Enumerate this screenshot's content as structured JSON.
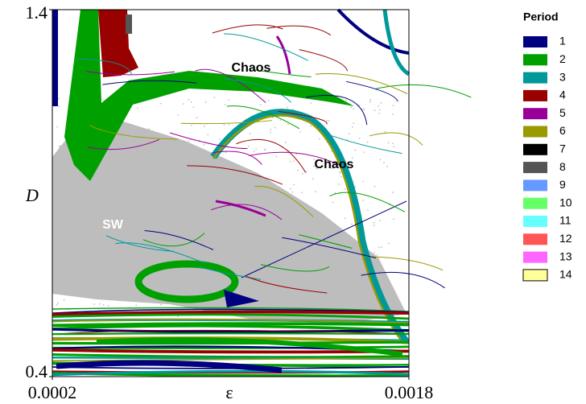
{
  "chart_data": {
    "type": "phase-diagram",
    "xlabel": "ε",
    "ylabel": "D",
    "xlim": [
      0.0002,
      0.0018
    ],
    "ylim": [
      0.4,
      1.4
    ],
    "xticks": [
      0.0002,
      0.0018
    ],
    "yticks": [
      0.4,
      1.4
    ],
    "annotations": [
      "Chaos",
      "Chaos",
      "SW"
    ],
    "legend_title": "Period",
    "series": [
      {
        "name": "1",
        "color": "#000080"
      },
      {
        "name": "2",
        "color": "#00a000"
      },
      {
        "name": "3",
        "color": "#009999"
      },
      {
        "name": "4",
        "color": "#990000"
      },
      {
        "name": "5",
        "color": "#990099"
      },
      {
        "name": "6",
        "color": "#999900"
      },
      {
        "name": "7",
        "color": "#000000"
      },
      {
        "name": "8",
        "color": "#555555"
      },
      {
        "name": "9",
        "color": "#6699ff"
      },
      {
        "name": "10",
        "color": "#66ff66"
      },
      {
        "name": "11",
        "color": "#66ffff"
      },
      {
        "name": "12",
        "color": "#ff5555"
      },
      {
        "name": "13",
        "color": "#ff66ff"
      },
      {
        "name": "14",
        "color": "#ffff99"
      }
    ]
  }
}
